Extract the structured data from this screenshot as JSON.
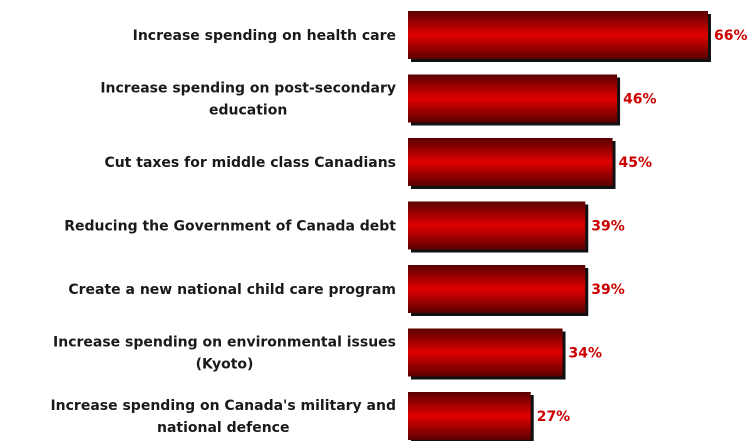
{
  "chart_data": {
    "type": "bar",
    "orientation": "horizontal",
    "categories": [
      [
        "Increase spending on health care"
      ],
      [
        "Increase spending on post-secondary",
        "education"
      ],
      [
        "Cut taxes for middle class Canadians"
      ],
      [
        "Reducing the Government of Canada debt"
      ],
      [
        "Create a new national child care program"
      ],
      [
        "Increase spending on environmental issues",
        "(Kyoto)"
      ],
      [
        "Increase spending on Canada's military and",
        "national defence"
      ]
    ],
    "values": [
      66,
      46,
      45,
      39,
      39,
      34,
      27
    ],
    "value_labels": [
      "66%",
      "46%",
      "45%",
      "39%",
      "39%",
      "34%",
      "27%"
    ],
    "xlim": [
      0,
      100
    ],
    "grid": false,
    "legend": "none",
    "colors": {
      "bar_light": "#e00000",
      "bar_dark": "#5a0000",
      "bar_shadow": "#111111",
      "value_text": "#cc0000"
    }
  }
}
